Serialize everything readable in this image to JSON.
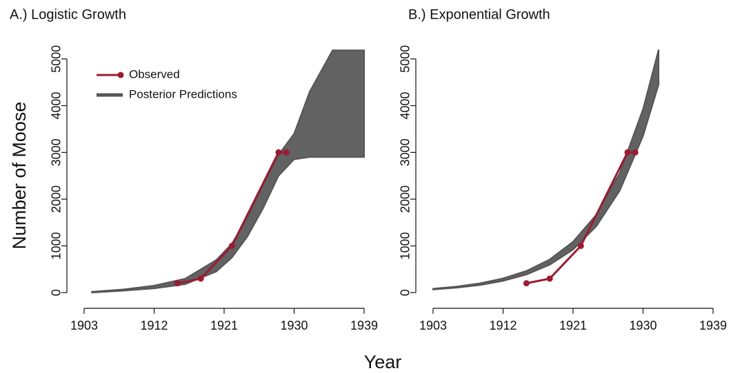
{
  "chart_data": [
    {
      "type": "band-line",
      "title": "A.) Logistic Growth",
      "ylabel": "Number of Moose",
      "xlabel": "Year",
      "xlim": [
        1903,
        1939
      ],
      "xticks": [
        1903,
        1912,
        1921,
        1930,
        1939
      ],
      "ylim": [
        -100,
        5200
      ],
      "yticks": [
        0,
        1000,
        2000,
        3000,
        4000,
        5000
      ],
      "legend": "upper left",
      "series": [
        {
          "name": "Observed",
          "color": "#9b1b30",
          "x": [
            1915,
            1918,
            1922,
            1928,
            1929
          ],
          "values": [
            200,
            300,
            1000,
            3000,
            3000
          ]
        },
        {
          "name": "Posterior Predictions",
          "color": "#555555",
          "x": [
            1904,
            1908,
            1912,
            1916,
            1920,
            1922,
            1924,
            1926,
            1928,
            1930,
            1932,
            1935,
            1939
          ],
          "lower": [
            0,
            40,
            90,
            180,
            450,
            750,
            1200,
            1800,
            2500,
            2850,
            2900,
            2900,
            2900
          ],
          "upper": [
            20,
            70,
            150,
            300,
            700,
            1050,
            1600,
            2300,
            2950,
            3400,
            4300,
            5200,
            5200
          ]
        }
      ]
    },
    {
      "type": "band-line",
      "title": "B.) Exponential Growth",
      "xlim": [
        1903,
        1939
      ],
      "xticks": [
        1903,
        1912,
        1921,
        1930,
        1939
      ],
      "ylim": [
        -100,
        5200
      ],
      "yticks": [
        0,
        1000,
        2000,
        3000,
        4000,
        5000
      ],
      "series": [
        {
          "color": "#9b1b30",
          "x": [
            1915,
            1918,
            1922,
            1928,
            1929
          ],
          "values": [
            200,
            300,
            1000,
            3000,
            3000
          ]
        },
        {
          "color": "#555555",
          "x": [
            1903,
            1906,
            1909,
            1912,
            1915,
            1918,
            1921,
            1924,
            1927,
            1930,
            1932
          ],
          "lower": [
            65,
            105,
            160,
            250,
            385,
            595,
            920,
            1420,
            2180,
            3350,
            4450
          ],
          "upper": [
            85,
            130,
            200,
            305,
            465,
            710,
            1090,
            1670,
            2560,
            3930,
            5200
          ]
        }
      ]
    }
  ]
}
